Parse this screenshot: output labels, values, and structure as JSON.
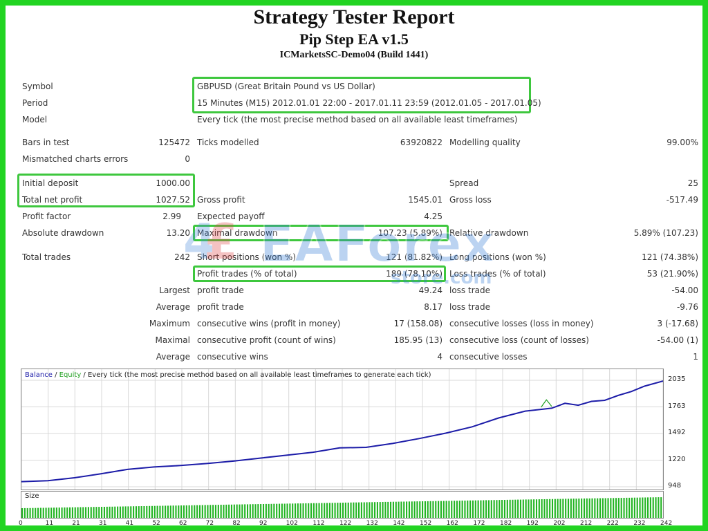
{
  "header": {
    "title": "Strategy Tester Report",
    "ea_name": "Pip Step EA v1.5",
    "server": "ICMarketsSC-Demo04 (Build 1441)"
  },
  "info": {
    "symbol_label": "Symbol",
    "symbol_value": "GBPUSD (Great Britain Pound vs US Dollar)",
    "period_label": "Period",
    "period_value": "15 Minutes (M15) 2012.01.01 22:00 - 2017.01.11 23:59 (2012.01.05 - 2017.01.05)",
    "model_label": "Model",
    "model_value": "Every tick (the most precise method based on all available least timeframes)"
  },
  "stats": {
    "bars_label": "Bars in test",
    "bars_value": "125472",
    "ticks_label": "Ticks modelled",
    "ticks_value": "63920822",
    "quality_label": "Modelling quality",
    "quality_value": "99.00%",
    "mismatch_label": "Mismatched charts errors",
    "mismatch_value": "0",
    "deposit_label": "Initial deposit",
    "deposit_value": "1000.00",
    "spread_label": "Spread",
    "spread_value": "25",
    "netprofit_label": "Total net profit",
    "netprofit_value": "1027.52",
    "grossprofit_label": "Gross profit",
    "grossprofit_value": "1545.01",
    "grossloss_label": "Gross loss",
    "grossloss_value": "-517.49",
    "pf_label": "Profit factor",
    "pf_value": "2.99",
    "ep_label": "Expected payoff",
    "ep_value": "4.25",
    "absdd_label": "Absolute drawdown",
    "absdd_value": "13.20",
    "maxdd_label": "Maximal drawdown",
    "maxdd_value": "107.23 (5.89%)",
    "reldd_label": "Relative drawdown",
    "reldd_value": "5.89% (107.23)",
    "trades_label": "Total trades",
    "trades_value": "242",
    "short_label": "Short positions (won %)",
    "short_value": "121 (81.82%)",
    "long_label": "Long positions (won %)",
    "long_value": "121 (74.38%)",
    "ptrades_label": "Profit trades (% of total)",
    "ptrades_value": "189 (78.10%)",
    "ltrades_label": "Loss trades (% of total)",
    "ltrades_value": "53 (21.90%)",
    "largest_label": "Largest",
    "largest_profit_label": "profit trade",
    "largest_profit_value": "49.24",
    "largest_loss_label": "loss trade",
    "largest_loss_value": "-54.00",
    "average_label": "Average",
    "average_profit_label": "profit trade",
    "average_profit_value": "8.17",
    "average_loss_label": "loss trade",
    "average_loss_value": "-9.76",
    "maximum_label": "Maximum",
    "max_wins_label": "consecutive wins (profit in money)",
    "max_wins_value": "17 (158.08)",
    "max_losses_label": "consecutive losses (loss in money)",
    "max_losses_value": "3 (-17.68)",
    "maximal_label": "Maximal",
    "maximal_profit_label": "consecutive profit (count of wins)",
    "maximal_profit_value": "185.95 (13)",
    "maximal_loss_label": "consecutive loss (count of losses)",
    "maximal_loss_value": "-54.00 (1)",
    "avg2_label": "Average",
    "avg_wins_label": "consecutive wins",
    "avg_wins_value": "4",
    "avg_losses_label": "consecutive losses",
    "avg_losses_value": "1"
  },
  "watermark": {
    "brand": "EAForex",
    "domain": "store.com"
  },
  "chart_data": {
    "type": "line",
    "legend": {
      "balance": "Balance",
      "sep1": " / ",
      "equity": "Equity",
      "sep2": " / ",
      "desc": "Every tick (the most precise method based on all available least timeframes to generate each tick)"
    },
    "size_label": "Size",
    "ylim": [
      948,
      2035
    ],
    "yticks": [
      "2035",
      "1763",
      "1492",
      "1220",
      "948"
    ],
    "xticks": [
      "0",
      "11",
      "21",
      "31",
      "41",
      "52",
      "62",
      "72",
      "82",
      "92",
      "102",
      "112",
      "122",
      "132",
      "142",
      "152",
      "162",
      "172",
      "182",
      "192",
      "202",
      "212",
      "222",
      "232",
      "242"
    ],
    "series": [
      {
        "name": "Balance",
        "x": [
          0,
          10,
          20,
          30,
          40,
          50,
          60,
          70,
          80,
          90,
          100,
          110,
          120,
          130,
          140,
          150,
          160,
          170,
          180,
          190,
          200,
          205,
          210,
          215,
          220,
          225,
          230,
          235,
          242
        ],
        "values": [
          1000,
          1010,
          1040,
          1080,
          1125,
          1150,
          1165,
          1185,
          1210,
          1240,
          1270,
          1300,
          1345,
          1350,
          1390,
          1440,
          1495,
          1560,
          1650,
          1720,
          1750,
          1800,
          1780,
          1820,
          1830,
          1880,
          1920,
          1975,
          2027
        ]
      },
      {
        "name": "Equity",
        "x": [
          196,
          198,
          200
        ],
        "values": [
          1760,
          1835,
          1768
        ]
      }
    ],
    "colors": {
      "balance": "#1c1ca8",
      "equity": "#20a020",
      "size": "#22b422",
      "grid": "#d8d8d8"
    }
  }
}
